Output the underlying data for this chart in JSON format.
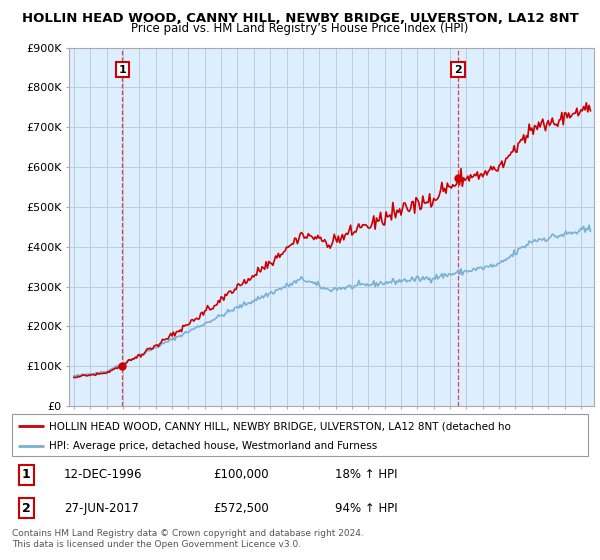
{
  "title1": "HOLLIN HEAD WOOD, CANNY HILL, NEWBY BRIDGE, ULVERSTON, LA12 8NT",
  "title2": "Price paid vs. HM Land Registry’s House Price Index (HPI)",
  "ylim": [
    0,
    900000
  ],
  "yticks": [
    0,
    100000,
    200000,
    300000,
    400000,
    500000,
    600000,
    700000,
    800000,
    900000
  ],
  "ytick_labels": [
    "£0",
    "£100K",
    "£200K",
    "£300K",
    "£400K",
    "£500K",
    "£600K",
    "£700K",
    "£800K",
    "£900K"
  ],
  "sale1_date": 1996.95,
  "sale1_price": 100000,
  "sale2_date": 2017.49,
  "sale2_price": 572500,
  "property_color": "#cc0000",
  "hpi_color": "#7ab0d4",
  "plot_bg_color": "#ddeeff",
  "grid_color": "#bbccdd",
  "legend_label_property": "HOLLIN HEAD WOOD, CANNY HILL, NEWBY BRIDGE, ULVERSTON, LA12 8NT (detached ho",
  "legend_label_hpi": "HPI: Average price, detached house, Westmorland and Furness",
  "annotation1_label": "1",
  "annotation1_date": "12-DEC-1996",
  "annotation1_price": "£100,000",
  "annotation1_hpi": "18% ↑ HPI",
  "annotation2_label": "2",
  "annotation2_date": "27-JUN-2017",
  "annotation2_price": "£572,500",
  "annotation2_hpi": "94% ↑ HPI",
  "copyright_text": "Contains HM Land Registry data © Crown copyright and database right 2024.\nThis data is licensed under the Open Government Licence v3.0.",
  "xlim_start": 1993.7,
  "xlim_end": 2025.8
}
